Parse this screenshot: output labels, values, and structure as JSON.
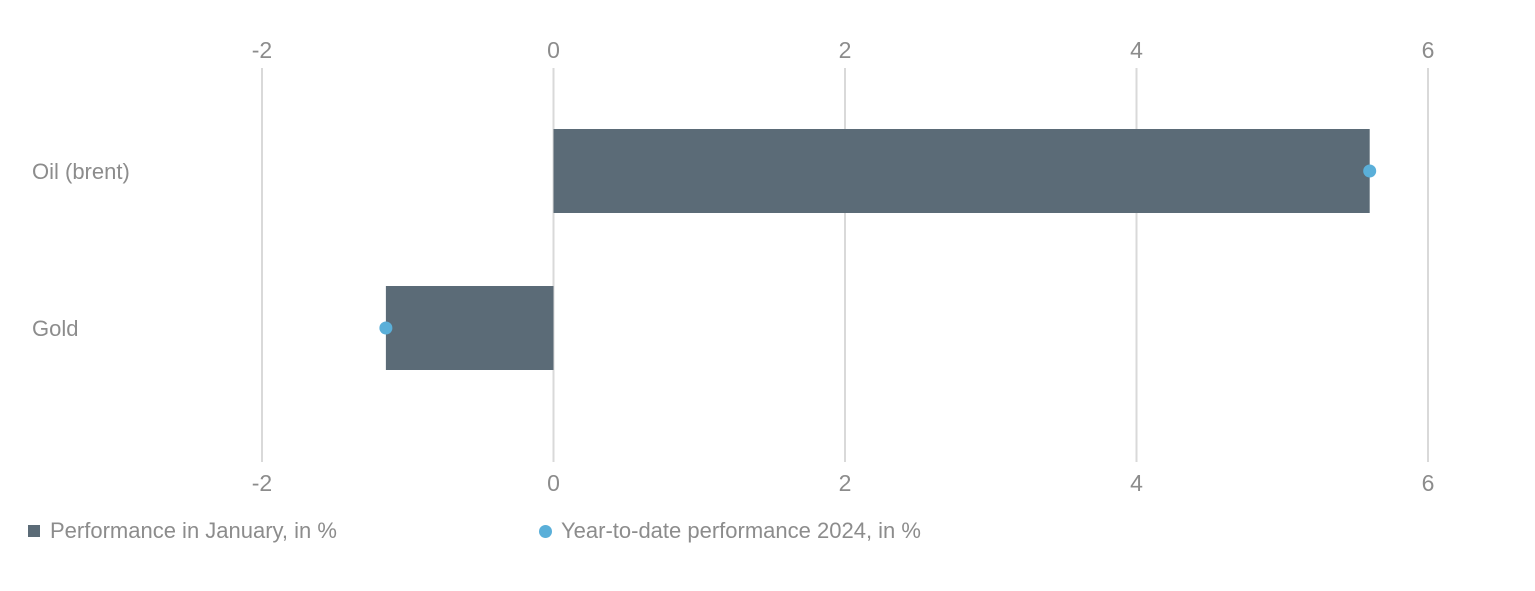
{
  "chart_data": {
    "type": "bar",
    "orientation": "horizontal",
    "categories": [
      "Oil (brent)",
      "Gold"
    ],
    "series": [
      {
        "name": "Performance in January, in %",
        "kind": "bar",
        "color": "#5b6b77",
        "values": [
          5.6,
          -1.15
        ]
      },
      {
        "name": "Year-to-date performance 2024, in %",
        "kind": "dot",
        "color": "#5aafd9",
        "values": [
          5.6,
          -1.15
        ]
      }
    ],
    "x_ticks": [
      -2,
      0,
      2,
      4,
      6
    ],
    "x_tick_labels": [
      "-2",
      "0",
      "2",
      "4",
      "6"
    ],
    "xlim": [
      -2,
      6
    ],
    "grid": "vertical",
    "axis_labels_position": "top-and-bottom",
    "legend_position": "bottom-left"
  },
  "colors": {
    "bar": "#5b6b77",
    "dot": "#5aafd9",
    "grid": "#d9d9d9",
    "text": "#8c8c8c"
  },
  "legend": {
    "items": [
      {
        "label": "Performance in January, in %",
        "marker": "square"
      },
      {
        "label": "Year-to-date performance 2024, in %",
        "marker": "dot"
      }
    ]
  }
}
